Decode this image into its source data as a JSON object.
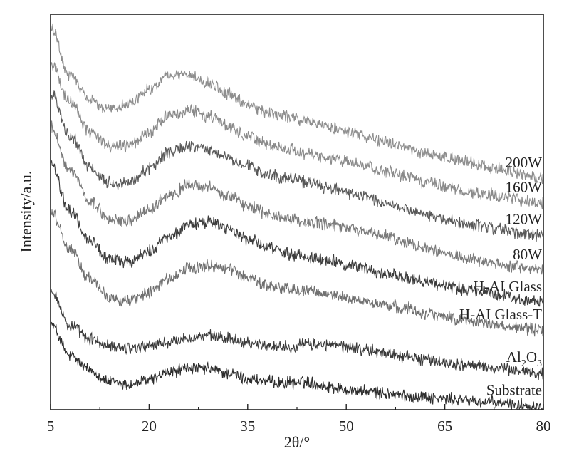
{
  "chart_data": {
    "type": "line",
    "xlabel": "2θ/°",
    "ylabel": "Intensity/a.u.",
    "xlim": [
      5,
      80
    ],
    "x_ticks": [
      5,
      20,
      35,
      50,
      65,
      80
    ],
    "x_tick_labels": [
      "5",
      "20",
      "35",
      "50",
      "65",
      "80"
    ],
    "y_tick_labels": [],
    "grid": false,
    "legend": "none (series labeled at right end of each curve)",
    "x": [
      5,
      8,
      11,
      14,
      17,
      20,
      23,
      26,
      29,
      32,
      35,
      38,
      41,
      44,
      47,
      50,
      53,
      56,
      59,
      62,
      65,
      68,
      71,
      74,
      77,
      80
    ],
    "series": [
      {
        "name": "Substrate",
        "color": "#2e2e2e",
        "label_parts": [
          "Substrate"
        ],
        "values": [
          8.0,
          5.0,
          3.7,
          2.6,
          2.3,
          2.8,
          3.5,
          3.9,
          3.8,
          3.4,
          2.9,
          2.6,
          2.5,
          2.6,
          2.2,
          1.9,
          1.7,
          1.5,
          1.3,
          1.2,
          1.0,
          0.9,
          0.7,
          0.6,
          0.4,
          0.3
        ]
      },
      {
        "name": "Al2O3",
        "color": "#3a3a3a",
        "label_parts": [
          "Al",
          "2",
          "O",
          "3"
        ],
        "values": [
          11.3,
          7.8,
          6.6,
          5.9,
          5.8,
          6.0,
          6.3,
          6.7,
          6.9,
          6.7,
          6.3,
          6.0,
          5.9,
          6.1,
          6.1,
          5.9,
          5.6,
          5.3,
          5.0,
          4.7,
          4.4,
          4.2,
          4.0,
          3.8,
          3.6,
          3.4
        ]
      },
      {
        "name": "H-AI Glass-T",
        "color": "#707070",
        "label_parts": [
          "H-AI Glass-T"
        ],
        "values": [
          18.5,
          15.0,
          12.2,
          10.4,
          10.2,
          11.0,
          12.2,
          13.2,
          13.5,
          13.2,
          12.4,
          11.6,
          11.3,
          11.1,
          10.8,
          10.5,
          10.1,
          9.8,
          9.5,
          9.1,
          8.7,
          8.4,
          8.1,
          7.8,
          7.6,
          7.4
        ]
      },
      {
        "name": "H-AI Glass",
        "color": "#3c3c3c",
        "label_parts": [
          "H-AI Glass"
        ],
        "values": [
          23.0,
          18.6,
          15.8,
          14.0,
          13.8,
          14.8,
          16.2,
          17.3,
          17.6,
          17.0,
          16.0,
          15.2,
          14.6,
          14.3,
          14.0,
          13.6,
          13.2,
          12.8,
          12.4,
          12.0,
          11.6,
          11.3,
          11.0,
          10.7,
          10.3,
          10.0
        ]
      },
      {
        "name": "80W",
        "color": "#7a7a7a",
        "label_parts": [
          "80W"
        ],
        "values": [
          26.5,
          22.3,
          19.4,
          17.8,
          17.6,
          18.7,
          20.1,
          21.0,
          20.8,
          20.0,
          19.1,
          18.3,
          17.9,
          17.6,
          17.3,
          17.0,
          16.6,
          16.2,
          15.7,
          15.2,
          14.7,
          14.2,
          13.8,
          13.5,
          13.3,
          13.0
        ]
      },
      {
        "name": "120W",
        "color": "#585858",
        "label_parts": [
          "120W"
        ],
        "values": [
          29.5,
          25.6,
          22.7,
          21.3,
          21.2,
          22.6,
          24.1,
          24.6,
          24.3,
          23.6,
          22.8,
          22.0,
          21.7,
          21.3,
          20.8,
          20.3,
          19.8,
          19.3,
          18.8,
          18.3,
          17.8,
          17.4,
          17.1,
          16.8,
          16.5,
          16.3
        ]
      },
      {
        "name": "160W",
        "color": "#8a8a8a",
        "label_parts": [
          "160W"
        ],
        "values": [
          32.5,
          28.7,
          26.0,
          24.7,
          24.7,
          26.0,
          27.5,
          28.0,
          27.5,
          26.6,
          25.6,
          24.9,
          24.4,
          24.0,
          23.6,
          23.2,
          22.8,
          22.3,
          21.8,
          21.3,
          20.9,
          20.5,
          20.2,
          19.9,
          19.6,
          19.3
        ]
      },
      {
        "name": "200W",
        "color": "#8e8e8e",
        "label_parts": [
          "200W"
        ],
        "values": [
          36.0,
          31.2,
          29.0,
          28.2,
          28.7,
          30.0,
          31.2,
          31.4,
          30.6,
          29.6,
          28.5,
          27.8,
          27.4,
          27.0,
          26.5,
          26.0,
          25.5,
          25.0,
          24.5,
          24.0,
          23.6,
          23.2,
          22.8,
          22.4,
          22.0,
          21.6
        ]
      }
    ]
  }
}
